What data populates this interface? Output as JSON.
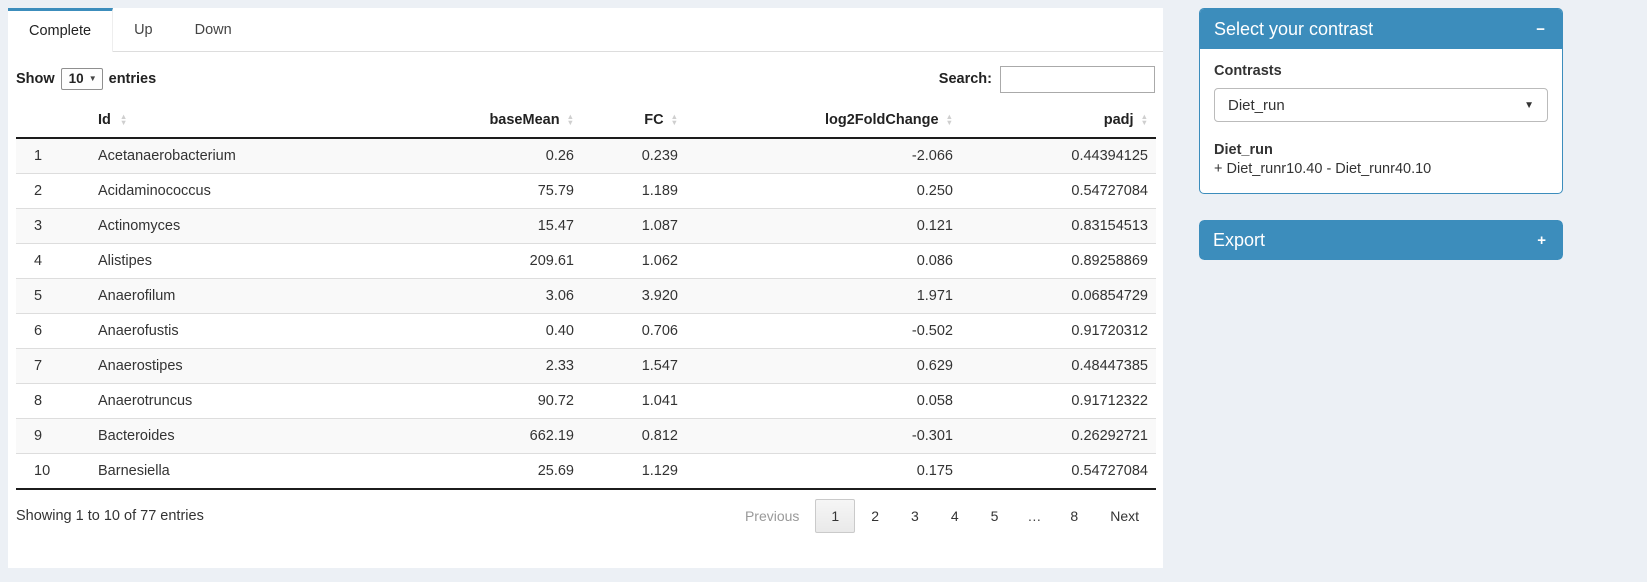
{
  "colors": {
    "accent": "#3c8dbc",
    "page_background": "#ecf0f5",
    "stripe": "#f9f9f9"
  },
  "tabs": [
    {
      "label": "Complete",
      "active": true
    },
    {
      "label": "Up",
      "active": false
    },
    {
      "label": "Down",
      "active": false
    }
  ],
  "table_controls": {
    "show_label": "Show",
    "page_length": "10",
    "entries_label": "entries",
    "search_label": "Search:",
    "search_value": ""
  },
  "table": {
    "columns": [
      "Id",
      "baseMean",
      "FC",
      "log2FoldChange",
      "padj"
    ],
    "rows": [
      {
        "index": "1",
        "id": "Acetanaerobacterium",
        "baseMean": "0.26",
        "fc": "0.239",
        "log2fc": "-2.066",
        "padj": "0.44394125"
      },
      {
        "index": "2",
        "id": "Acidaminococcus",
        "baseMean": "75.79",
        "fc": "1.189",
        "log2fc": "0.250",
        "padj": "0.54727084"
      },
      {
        "index": "3",
        "id": "Actinomyces",
        "baseMean": "15.47",
        "fc": "1.087",
        "log2fc": "0.121",
        "padj": "0.83154513"
      },
      {
        "index": "4",
        "id": "Alistipes",
        "baseMean": "209.61",
        "fc": "1.062",
        "log2fc": "0.086",
        "padj": "0.89258869"
      },
      {
        "index": "5",
        "id": "Anaerofilum",
        "baseMean": "3.06",
        "fc": "3.920",
        "log2fc": "1.971",
        "padj": "0.06854729"
      },
      {
        "index": "6",
        "id": "Anaerofustis",
        "baseMean": "0.40",
        "fc": "0.706",
        "log2fc": "-0.502",
        "padj": "0.91720312"
      },
      {
        "index": "7",
        "id": "Anaerostipes",
        "baseMean": "2.33",
        "fc": "1.547",
        "log2fc": "0.629",
        "padj": "0.48447385"
      },
      {
        "index": "8",
        "id": "Anaerotruncus",
        "baseMean": "90.72",
        "fc": "1.041",
        "log2fc": "0.058",
        "padj": "0.91712322"
      },
      {
        "index": "9",
        "id": "Bacteroides",
        "baseMean": "662.19",
        "fc": "0.812",
        "log2fc": "-0.301",
        "padj": "0.26292721"
      },
      {
        "index": "10",
        "id": "Barnesiella",
        "baseMean": "25.69",
        "fc": "1.129",
        "log2fc": "0.175",
        "padj": "0.54727084"
      }
    ]
  },
  "footer": {
    "info": "Showing 1 to 10 of 77 entries",
    "pagination": [
      {
        "label": "Previous",
        "state": "disabled"
      },
      {
        "label": "1",
        "state": "active"
      },
      {
        "label": "2",
        "state": ""
      },
      {
        "label": "3",
        "state": ""
      },
      {
        "label": "4",
        "state": ""
      },
      {
        "label": "5",
        "state": ""
      },
      {
        "label": "…",
        "state": "ellipsis"
      },
      {
        "label": "8",
        "state": ""
      },
      {
        "label": "Next",
        "state": ""
      }
    ]
  },
  "contrast_box": {
    "title": "Select your contrast",
    "collapse_icon": "−",
    "contrasts_label": "Contrasts",
    "selected_contrast": "Diet_run",
    "contrast_name": "Diet_run",
    "contrast_formula": "+ Diet_runr10.40 - Diet_runr40.10"
  },
  "export_box": {
    "title": "Export",
    "expand_icon": "+"
  }
}
